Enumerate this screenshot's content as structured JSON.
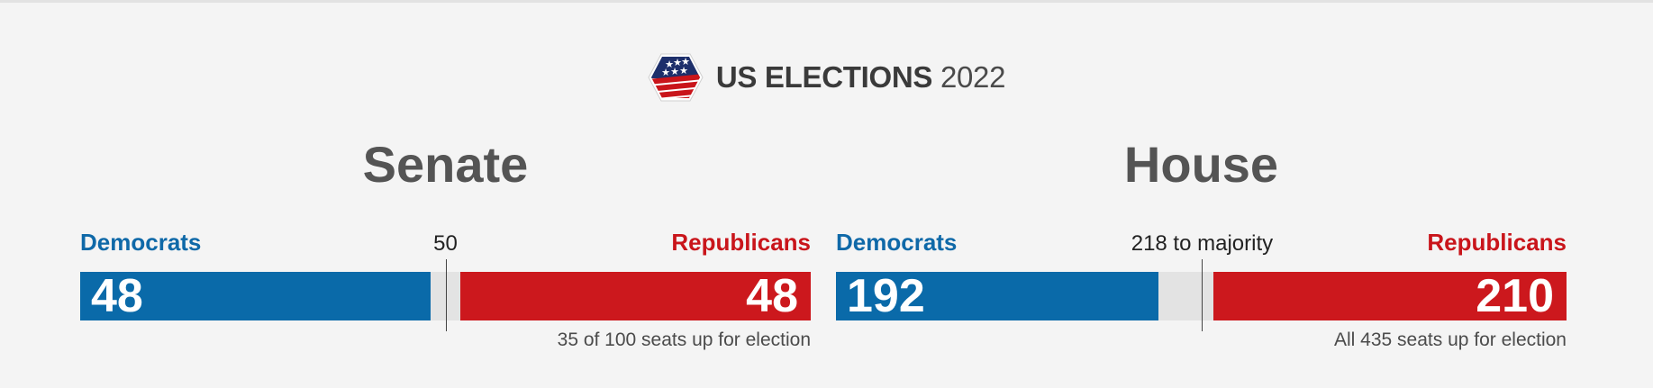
{
  "header": {
    "title_bold": "US ELECTIONS",
    "year": "2022",
    "logo_icon": "us-flag-hexagon-icon"
  },
  "colors": {
    "democrats": "#0a6aa9",
    "republicans": "#cc181d",
    "undecided": "#e3e3e3"
  },
  "senate": {
    "title": "Senate",
    "dem_label": "Democrats",
    "rep_label": "Republicans",
    "majority_text": "50",
    "dem_seats": "48",
    "rep_seats": "48",
    "total": 100,
    "majority_value": 50,
    "seats_note": "35 of 100 seats up for election"
  },
  "house": {
    "title": "House",
    "dem_label": "Democrats",
    "rep_label": "Republicans",
    "majority_text": "218 to majority",
    "dem_seats": "192",
    "rep_seats": "210",
    "total": 435,
    "majority_value": 218,
    "seats_note": "All 435 seats up for election"
  }
}
